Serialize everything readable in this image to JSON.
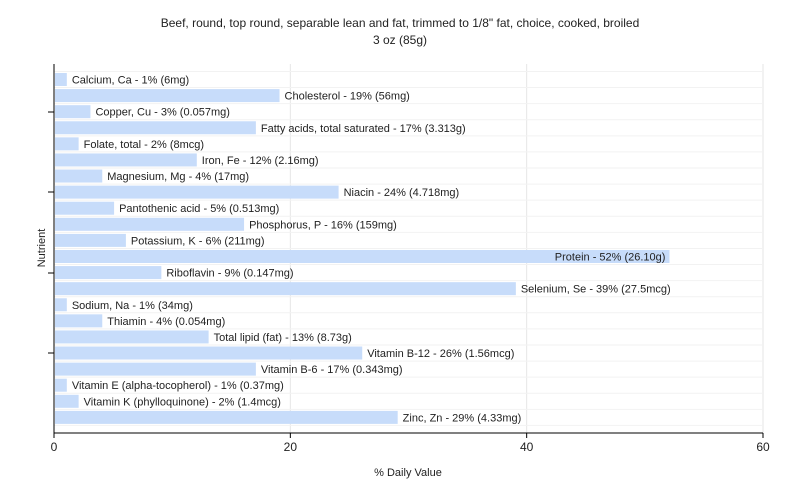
{
  "chart_data": {
    "type": "bar",
    "orientation": "horizontal",
    "title": "Beef, round, top round, separable lean and fat, trimmed to 1/8\" fat, choice, cooked, broiled",
    "subtitle": "3 oz (85g)",
    "xlabel": "% Daily Value",
    "ylabel": "Nutrient",
    "xlim": [
      0,
      60
    ],
    "xticks": [
      0,
      20,
      40,
      60
    ],
    "grid": true,
    "legend": "none",
    "bar_color": "#c7dcfa",
    "categories": [
      "Calcium, Ca",
      "Cholesterol",
      "Copper, Cu",
      "Fatty acids, total saturated",
      "Folate, total",
      "Iron, Fe",
      "Magnesium, Mg",
      "Niacin",
      "Pantothenic acid",
      "Phosphorus, P",
      "Potassium, K",
      "Protein",
      "Riboflavin",
      "Selenium, Se",
      "Sodium, Na",
      "Thiamin",
      "Total lipid (fat)",
      "Vitamin B-12",
      "Vitamin B-6",
      "Vitamin E (alpha-tocopherol)",
      "Vitamin K (phylloquinone)",
      "Zinc, Zn"
    ],
    "values": [
      1,
      19,
      3,
      17,
      2,
      12,
      4,
      24,
      5,
      16,
      6,
      52,
      9,
      39,
      1,
      4,
      13,
      26,
      17,
      1,
      2,
      29
    ],
    "labels": [
      "Calcium, Ca - 1% (6mg)",
      "Cholesterol - 19% (56mg)",
      "Copper, Cu - 3% (0.057mg)",
      "Fatty acids, total saturated - 17% (3.313g)",
      "Folate, total - 2% (8mcg)",
      "Iron, Fe - 12% (2.16mg)",
      "Magnesium, Mg - 4% (17mg)",
      "Niacin - 24% (4.718mg)",
      "Pantothenic acid - 5% (0.513mg)",
      "Phosphorus, P - 16% (159mg)",
      "Potassium, K - 6% (211mg)",
      "Protein - 52% (26.10g)",
      "Riboflavin - 9% (0.147mg)",
      "Selenium, Se - 39% (27.5mcg)",
      "Sodium, Na - 1% (34mg)",
      "Thiamin - 4% (0.054mg)",
      "Total lipid (fat) - 13% (8.73g)",
      "Vitamin B-12 - 26% (1.56mcg)",
      "Vitamin B-6 - 17% (0.343mg)",
      "Vitamin E (alpha-tocopherol) - 1% (0.37mg)",
      "Vitamin K (phylloquinone) - 2% (1.4mcg)",
      "Zinc, Zn - 29% (4.33mg)"
    ]
  }
}
